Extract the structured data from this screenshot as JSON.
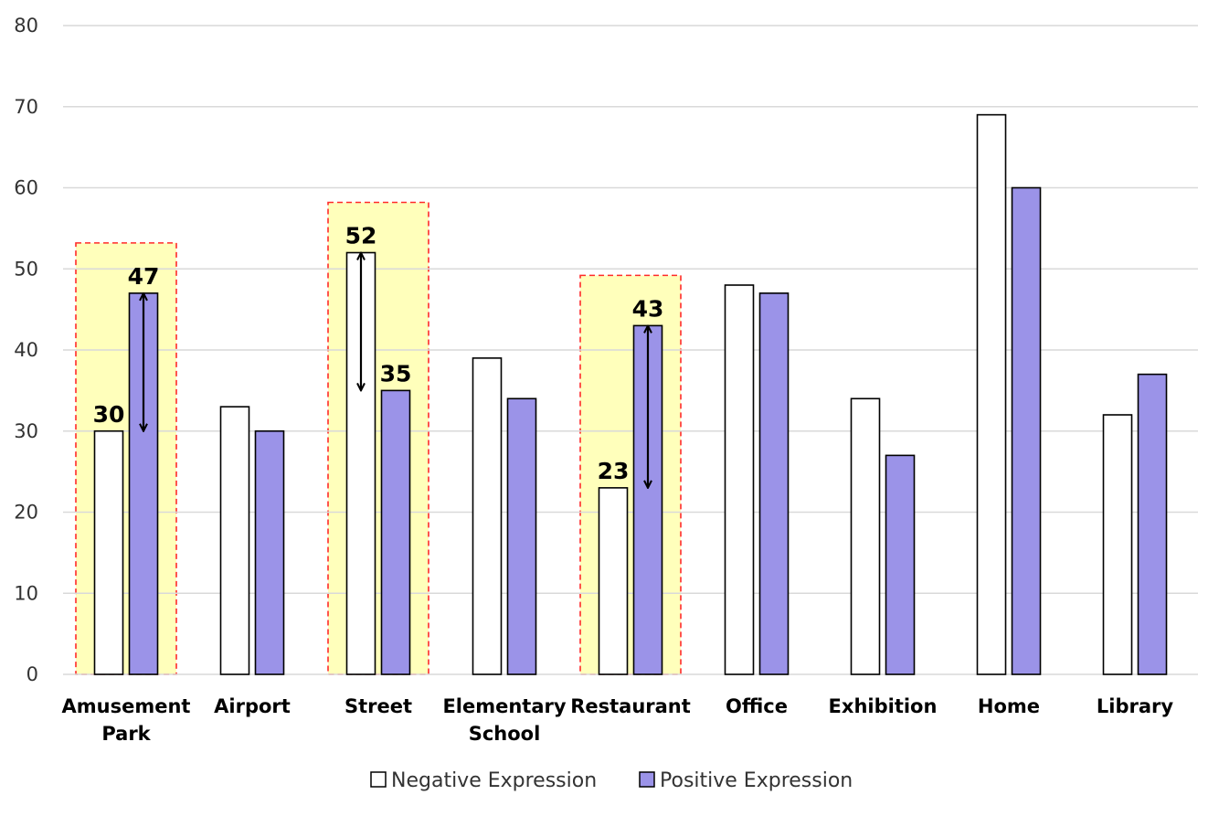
{
  "chart_data": {
    "type": "bar",
    "categories": [
      [
        "Amusement",
        "Park"
      ],
      [
        "Airport"
      ],
      [
        "Street"
      ],
      [
        "Elementary",
        "School"
      ],
      [
        "Restaurant"
      ],
      [
        "Office"
      ],
      [
        "Exhibition"
      ],
      [
        "Home"
      ],
      [
        "Library"
      ]
    ],
    "series": [
      {
        "name": "Negative Expression",
        "values": [
          30,
          33,
          52,
          39,
          23,
          48,
          34,
          69,
          32
        ],
        "color": "#ffffff"
      },
      {
        "name": "Positive Expression",
        "values": [
          47,
          30,
          35,
          34,
          43,
          47,
          27,
          60,
          37
        ],
        "color": "#9b93e8"
      }
    ],
    "ylim": [
      0,
      80
    ],
    "yticks": [
      0,
      10,
      20,
      30,
      40,
      50,
      60,
      70,
      80
    ],
    "grid": true,
    "legend": "bottom-center",
    "xlabel": "",
    "ylabel": "",
    "highlights": [
      {
        "category_index": 0,
        "labels": {
          "Negative Expression": "30",
          "Positive Expression": "47"
        },
        "arrow": {
          "from": 30,
          "to": 47
        }
      },
      {
        "category_index": 2,
        "labels": {
          "Negative Expression": "52",
          "Positive Expression": "35"
        },
        "arrow": {
          "from": 52,
          "to": 35
        }
      },
      {
        "category_index": 4,
        "labels": {
          "Negative Expression": "23",
          "Positive Expression": "43"
        },
        "arrow": {
          "from": 23,
          "to": 43
        }
      }
    ],
    "colors": {
      "highlight_fill": "#ffffbb",
      "highlight_border": "#ff2a2a",
      "grid": "#d9d9d9",
      "bar_stroke": "#000000"
    }
  }
}
